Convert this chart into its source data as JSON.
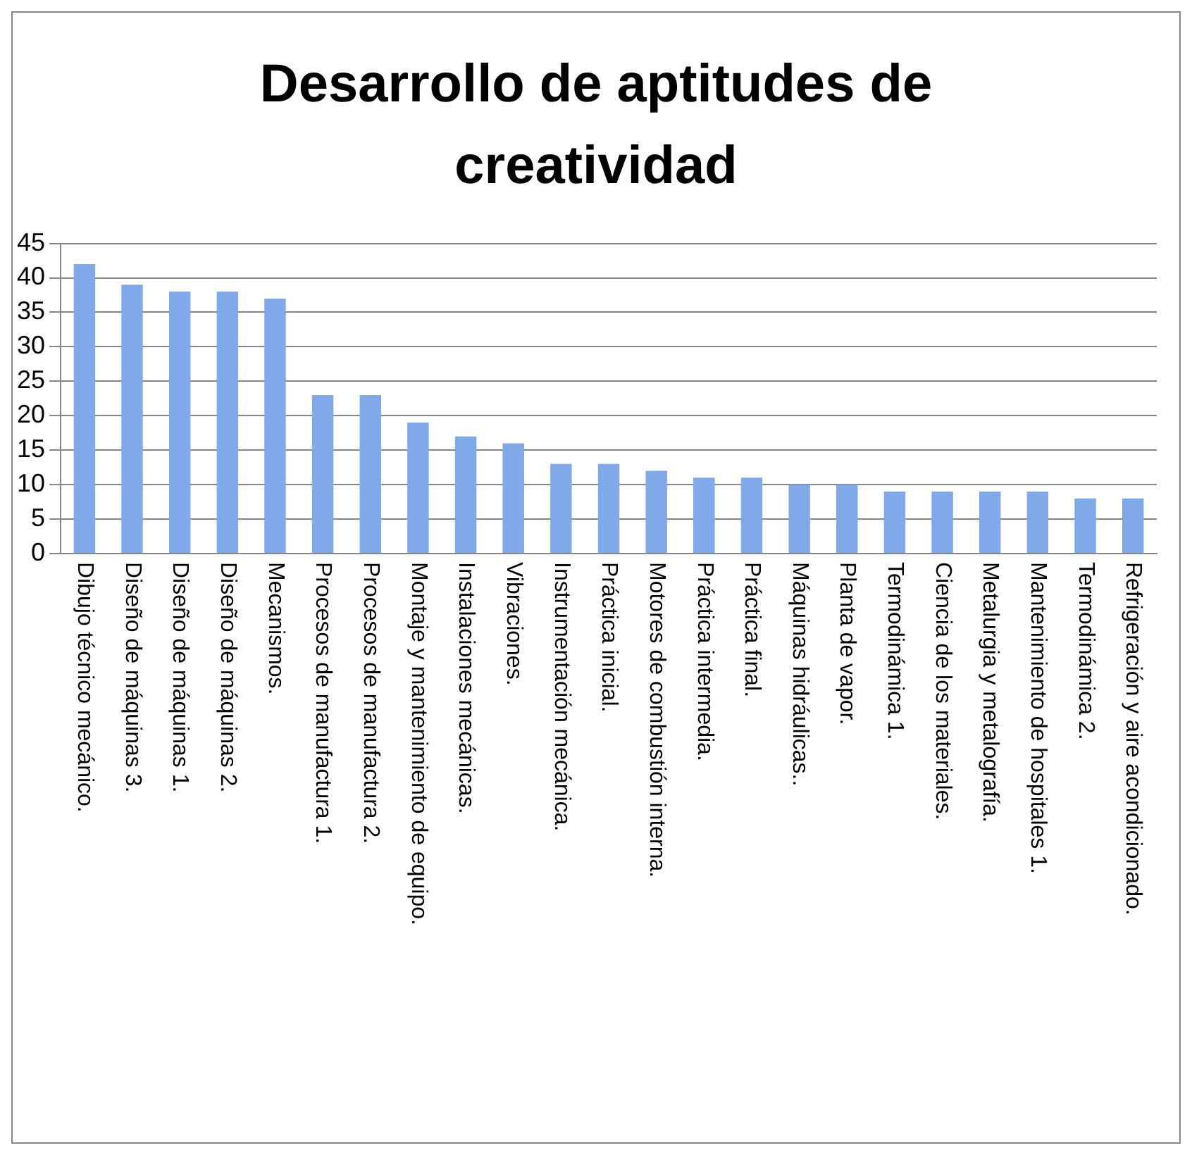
{
  "chart_data": {
    "type": "bar",
    "title": "Desarrollo de aptitudes de creatividad",
    "categories": [
      "Dibujo técnico mecánico.",
      "Diseño de máquinas 3.",
      "Diseño de máquinas 1.",
      "Diseño de máquinas 2.",
      "Mecanismos.",
      "Procesos de manufactura 1.",
      "Procesos de manufactura 2.",
      "Montaje y mantenimiento de equipo.",
      "Instalaciones mecánicas.",
      "Vibraciones.",
      "Instrumentación mecánica.",
      "Práctica inicial.",
      "Motores de combustión interna.",
      "Práctica intermedia.",
      "Práctica final.",
      "Máquinas hidráulicas..",
      "Planta de vapor.",
      "Termodinámica 1.",
      "Ciencia de los materiales.",
      "Metalurgia y metalografía.",
      "Mantenimiento de hospitales 1.",
      "Termodinámica 2.",
      "Refrigeración y aire acondicionado."
    ],
    "values": [
      42,
      39,
      38,
      38,
      37,
      23,
      23,
      19,
      17,
      16,
      13,
      13,
      12,
      11,
      11,
      10,
      10,
      9,
      9,
      9,
      9,
      8,
      8
    ],
    "color": "#7fa9e9",
    "ylim": [
      0,
      45
    ],
    "yticks": [
      0,
      5,
      10,
      15,
      20,
      25,
      30,
      35,
      40,
      45
    ],
    "grid": "y",
    "legend": false
  }
}
